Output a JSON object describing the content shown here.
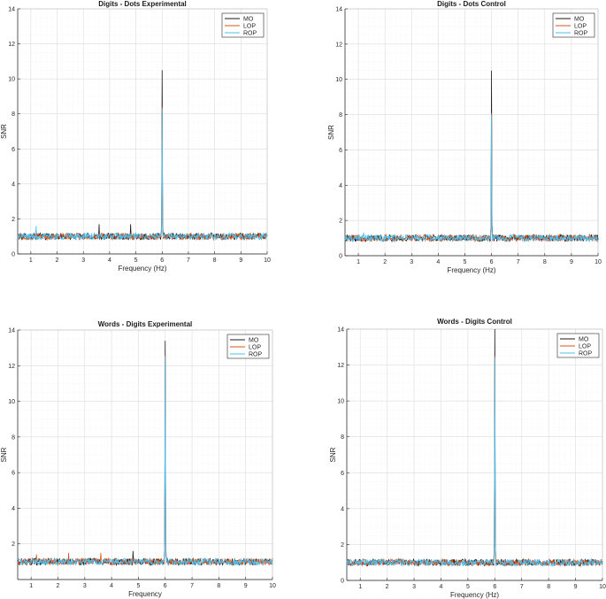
{
  "colors": {
    "MO": "#1a1a1a",
    "LOP": "#d95319",
    "ROP": "#4dbeee",
    "grid": "#e6e6e6",
    "axis": "#262626"
  },
  "chart_data": [
    {
      "type": "line",
      "title": "Digits - Dots Experimental",
      "xlabel": "Frequency (Hz)",
      "ylabel": "SNR",
      "xlim": [
        0.5,
        10
      ],
      "ylim": [
        0,
        14
      ],
      "xticks": [
        1,
        2,
        3,
        4,
        5,
        6,
        7,
        8,
        9,
        10
      ],
      "yticks": [
        0,
        2,
        4,
        6,
        8,
        10,
        12,
        14
      ],
      "grid": true,
      "legend_position": "top-right",
      "baseline_snr": 1.0,
      "series": [
        {
          "name": "MO",
          "peaks": [
            {
              "x": 1.2,
              "y": 1.3
            },
            {
              "x": 3.6,
              "y": 1.7
            },
            {
              "x": 4.8,
              "y": 1.7
            },
            {
              "x": 6.0,
              "y": 10.5
            }
          ]
        },
        {
          "name": "LOP",
          "peaks": [
            {
              "x": 1.2,
              "y": 1.3
            },
            {
              "x": 6.0,
              "y": 8.4
            }
          ]
        },
        {
          "name": "ROP",
          "peaks": [
            {
              "x": 1.2,
              "y": 1.6
            },
            {
              "x": 6.0,
              "y": 8.3
            }
          ]
        }
      ]
    },
    {
      "type": "line",
      "title": "Digits - Dots Control",
      "xlabel": "Frequency (Hz)",
      "ylabel": "SNR",
      "xlim": [
        0.5,
        10
      ],
      "ylim": [
        0,
        14
      ],
      "xticks": [
        1,
        2,
        3,
        4,
        5,
        6,
        7,
        8,
        9,
        10
      ],
      "yticks": [
        0,
        2,
        4,
        6,
        8,
        10,
        12,
        14
      ],
      "grid": true,
      "legend_position": "top-right",
      "baseline_snr": 1.0,
      "series": [
        {
          "name": "MO",
          "peaks": [
            {
              "x": 6.0,
              "y": 10.5
            }
          ]
        },
        {
          "name": "LOP",
          "peaks": [
            {
              "x": 6.0,
              "y": 8.1
            }
          ]
        },
        {
          "name": "ROP",
          "peaks": [
            {
              "x": 1.2,
              "y": 1.3
            },
            {
              "x": 6.0,
              "y": 8.0
            }
          ]
        }
      ]
    },
    {
      "type": "line",
      "title": "Words - Digits Experimental",
      "xlabel": "Frequency",
      "ylabel": "SNR",
      "xlim": [
        0.5,
        10
      ],
      "ylim": [
        0,
        14
      ],
      "xticks": [
        1,
        2,
        3,
        4,
        5,
        6,
        7,
        8,
        9,
        10
      ],
      "yticks": [
        2,
        4,
        6,
        8,
        10,
        12,
        14
      ],
      "grid": true,
      "legend_position": "top-right",
      "baseline_snr": 1.0,
      "series": [
        {
          "name": "MO",
          "peaks": [
            {
              "x": 4.8,
              "y": 1.6
            },
            {
              "x": 6.0,
              "y": 13.4
            }
          ]
        },
        {
          "name": "LOP",
          "peaks": [
            {
              "x": 1.2,
              "y": 1.4
            },
            {
              "x": 2.4,
              "y": 1.5
            },
            {
              "x": 3.6,
              "y": 1.5
            },
            {
              "x": 6.0,
              "y": 12.6
            }
          ]
        },
        {
          "name": "ROP",
          "peaks": [
            {
              "x": 1.2,
              "y": 1.2
            },
            {
              "x": 6.0,
              "y": 12.5
            }
          ]
        }
      ]
    },
    {
      "type": "line",
      "title": "Words - Digits Control",
      "xlabel": "Frequency (Hz)",
      "ylabel": "SNR",
      "xlim": [
        0.5,
        10
      ],
      "ylim": [
        0,
        14
      ],
      "xticks": [
        1,
        2,
        3,
        4,
        5,
        6,
        7,
        8,
        9,
        10
      ],
      "yticks": [
        0,
        2,
        4,
        6,
        8,
        10,
        12,
        14
      ],
      "grid": true,
      "legend_position": "top-right",
      "baseline_snr": 1.0,
      "series": [
        {
          "name": "MO",
          "peaks": [
            {
              "x": 6.0,
              "y": 14.0
            }
          ]
        },
        {
          "name": "LOP",
          "peaks": [
            {
              "x": 6.0,
              "y": 12.5
            }
          ]
        },
        {
          "name": "ROP",
          "peaks": [
            {
              "x": 6.0,
              "y": 12.4
            }
          ]
        }
      ]
    }
  ]
}
